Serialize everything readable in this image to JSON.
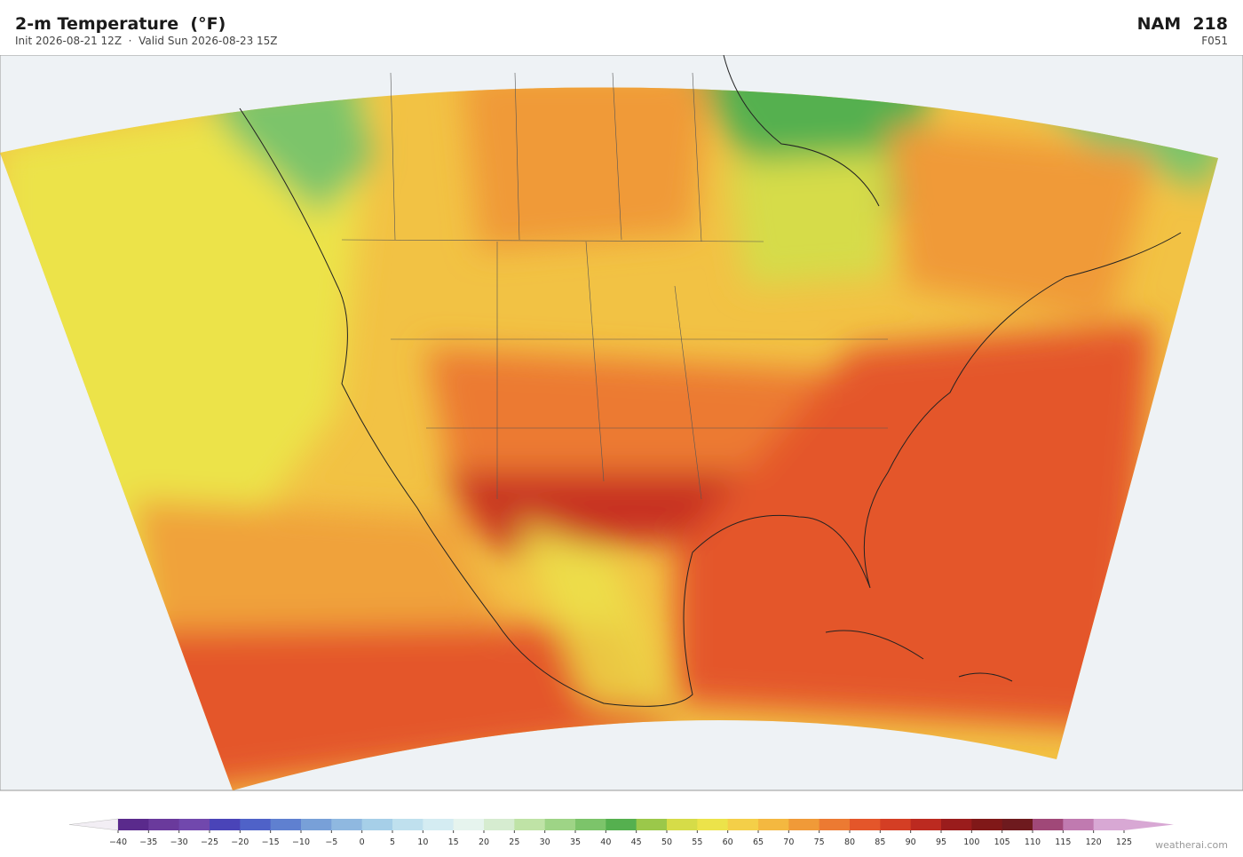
{
  "header": {
    "title": "2-m Temperature  (°F)",
    "subtitle": "Init 2026-08-21 12Z  ·  Valid Sun 2026-08-23 15Z",
    "model": "NAM  218",
    "forecast_hour": "F051"
  },
  "colorbar": {
    "ticks": [
      {
        "value": -40,
        "label": "−40"
      },
      {
        "value": -35,
        "label": "−35"
      },
      {
        "value": -30,
        "label": "−30"
      },
      {
        "value": -25,
        "label": "−25"
      },
      {
        "value": -20,
        "label": "−20"
      },
      {
        "value": -15,
        "label": "−15"
      },
      {
        "value": -10,
        "label": "−10"
      },
      {
        "value": -5,
        "label": "−5"
      },
      0,
      5,
      10,
      15,
      20,
      25,
      30,
      35,
      40,
      45,
      50,
      55,
      60,
      65,
      70,
      75,
      80,
      85,
      90,
      95,
      100,
      105,
      110,
      115,
      120,
      125
    ],
    "colors": [
      "#5a2a8c",
      "#6a3a9c",
      "#7148ad",
      "#4a44b8",
      "#4f62c8",
      "#5f80d0",
      "#78a0d8",
      "#8fb8e0",
      "#a6cfe8",
      "#bfe0ee",
      "#d4ecf2",
      "#e6f4ee",
      "#d6ecd0",
      "#bfe3a6",
      "#9ed486",
      "#7cc46a",
      "#55b04f",
      "#9bc84a",
      "#d6dc48",
      "#ece34a",
      "#f4cf48",
      "#f4b840",
      "#f09a38",
      "#ec7a32",
      "#e4562a",
      "#d43e24",
      "#bc2a20",
      "#9a1c1c",
      "#801818",
      "#6e1a1e",
      "#a04878",
      "#c07ab0",
      "#d8a8d4"
    ],
    "under_color": "#f2eef4",
    "over_color": "#d8a8d4"
  },
  "credit": "weatherai.com"
}
